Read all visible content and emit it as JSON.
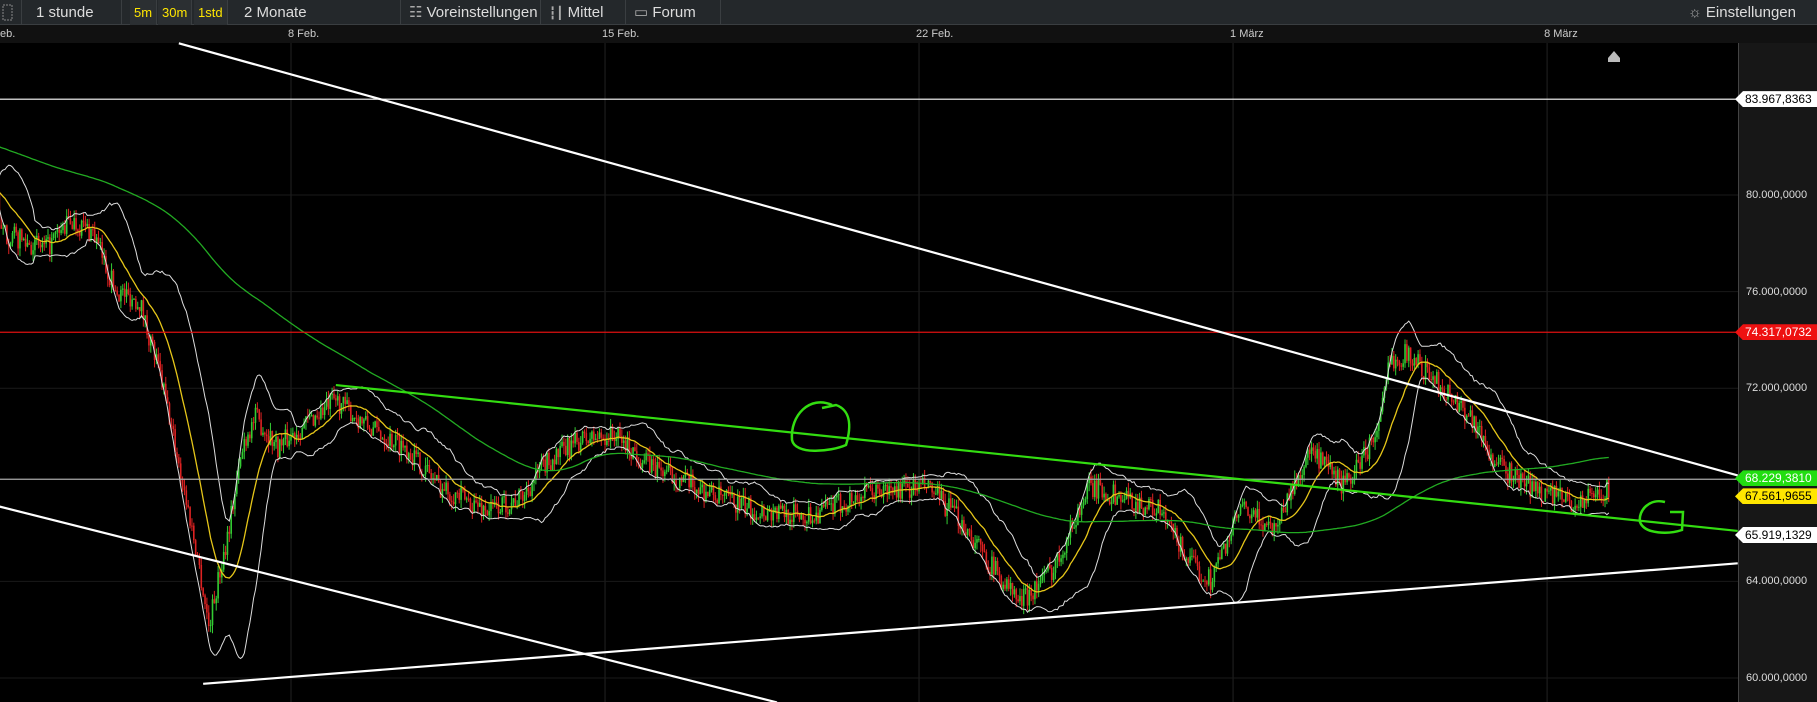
{
  "toolbar": {
    "interval": "1 stunde",
    "quick_intervals": [
      "5m",
      "30m",
      "1std"
    ],
    "range": "2 Monate",
    "presets": "Voreinstellungen",
    "indicators": "Mittel",
    "forum": "Forum",
    "settings": "Einstellungen",
    "icons": [
      "layout-icon",
      "sliders-icon",
      "candlestick-icon",
      "speech-bubble-icon",
      "gear-icon"
    ]
  },
  "colors": {
    "up": "#33cc33",
    "down": "#dd2222",
    "ma_short": "#e6c619",
    "ma_long": "#22aa22",
    "bands": "#dddddd",
    "trendline_green": "#33dd11",
    "resistance_red": "#dd1111"
  },
  "chart_data": {
    "type": "candlestick",
    "x_tick_labels": [
      {
        "date": "02-01",
        "label": "eb."
      },
      {
        "date": "02-08",
        "label": "8 Feb."
      },
      {
        "date": "02-15",
        "label": "15 Feb."
      },
      {
        "date": "02-22",
        "label": "22 Feb."
      },
      {
        "date": "03-01",
        "label": "1 März"
      },
      {
        "date": "03-08",
        "label": "8 März"
      }
    ],
    "y_tick_labels": [
      "60.000,0000",
      "64.000,0000",
      "72.000,0000",
      "76.000,0000",
      "80.000,0000"
    ],
    "y_ticks": [
      60,
      64,
      72,
      76,
      80
    ],
    "ylim": [
      59.3,
      87.6
    ],
    "interval": "1h",
    "price_path": [
      [
        "02-01 12:00",
        78.47
      ],
      [
        "02-02 13:00",
        77.75
      ],
      [
        "02-03 02:00",
        78.95
      ],
      [
        "02-03 14:00",
        78.47
      ],
      [
        "02-04 02:00",
        76.07
      ],
      [
        "02-04 15:00",
        75.59
      ],
      [
        "02-05 03:00",
        72.23
      ],
      [
        "02-05 12:00",
        68.87
      ],
      [
        "02-05 22:00",
        65.04
      ],
      [
        "02-06 04:00",
        62.16
      ],
      [
        "02-06 13:00",
        65.52
      ],
      [
        "02-06 23:00",
        69.83
      ],
      [
        "02-07 05:00",
        70.79
      ],
      [
        "02-07 17:00",
        69.59
      ],
      [
        "02-08 12:00",
        70.79
      ],
      [
        "02-09 00:00",
        71.51
      ],
      [
        "02-09 19:00",
        70.31
      ],
      [
        "02-10 13:00",
        69.59
      ],
      [
        "02-11 08:00",
        67.91
      ],
      [
        "02-11 20:00",
        67.43
      ],
      [
        "02-12 09:00",
        66.95
      ],
      [
        "02-13 03:00",
        67.43
      ],
      [
        "02-13 16:00",
        68.87
      ],
      [
        "02-14 10:00",
        69.83
      ],
      [
        "02-15 05:00",
        70.07
      ],
      [
        "02-15 23:00",
        68.87
      ],
      [
        "02-17 00:00",
        67.91
      ],
      [
        "02-18 07:00",
        66.95
      ],
      [
        "02-19 14:00",
        66.71
      ],
      [
        "02-20 21:00",
        67.67
      ],
      [
        "02-22 04:00",
        67.91
      ],
      [
        "02-22 23:00",
        66.47
      ],
      [
        "02-23 11:00",
        65.04
      ],
      [
        "02-24 06:00",
        63.12
      ],
      [
        "02-25 00:00",
        64.56
      ],
      [
        "02-25 19:00",
        67.91
      ],
      [
        "02-26 14:00",
        67.43
      ],
      [
        "02-27 08:00",
        66.95
      ],
      [
        "02-28 03:00",
        64.56
      ],
      [
        "02-28 12:00",
        64.08
      ],
      [
        "03-01 04:00",
        66.95
      ],
      [
        "03-01 22:00",
        66.23
      ],
      [
        "03-02 17:00",
        69.35
      ],
      [
        "03-03 12:00",
        67.91
      ],
      [
        "03-04 06:00",
        70.31
      ],
      [
        "03-04 12:00",
        73.19
      ],
      [
        "03-04 22:00",
        73.43
      ],
      [
        "03-05 13:00",
        72.23
      ],
      [
        "03-06 08:00",
        70.79
      ],
      [
        "03-06 20:00",
        68.87
      ],
      [
        "03-07 15:00",
        67.91
      ],
      [
        "03-08 16:00",
        67.19
      ],
      [
        "03-09 10:00",
        67.91
      ]
    ],
    "horizontal_lines": [
      {
        "price": 83.9678363,
        "label": "83.967,8363",
        "color": "#ffffff",
        "tag_bg": "#ffffff",
        "tag_fg": "#000000"
      },
      {
        "price": 74.3170732,
        "label": "74.317,0732",
        "color": "#dd1111",
        "tag_bg": "#ee1111",
        "tag_fg": "#ffffff"
      },
      {
        "price": 68.229381,
        "label": "68.229,3810",
        "color": "#aaaaaa",
        "tag_bg": "#22dd11",
        "tag_fg": "#ffffff"
      }
    ],
    "price_tags": [
      {
        "price": 67.5619655,
        "label": "67.561,9655",
        "tag_bg": "#ffe600",
        "tag_fg": "#000000"
      },
      {
        "price": 65.9191329,
        "label": "65.919,1329",
        "tag_bg": "#ffffff",
        "tag_fg": "#000000"
      }
    ],
    "trendlines": [
      {
        "from": [
          "02-05 12:00",
          86.28
        ],
        "to": [
          "03-12 06:00",
          68.39
        ],
        "color": "#ffffff"
      },
      {
        "from": [
          "02-01 12:00",
          67.1
        ],
        "to": [
          "02-18 20:00",
          58.99
        ],
        "color": "#ffffff"
      },
      {
        "from": [
          "02-06 01:00",
          59.76
        ],
        "to": [
          "03-12 06:00",
          64.75
        ],
        "color": "#ffffff"
      },
      {
        "from": [
          "02-09 00:00",
          72.13
        ],
        "to": [
          "03-12 06:00",
          66.09
        ],
        "color": "#33dd11"
      }
    ],
    "indicators": [
      "SMA 20",
      "Bollinger Bands 20,2",
      "SMA 200"
    ]
  }
}
